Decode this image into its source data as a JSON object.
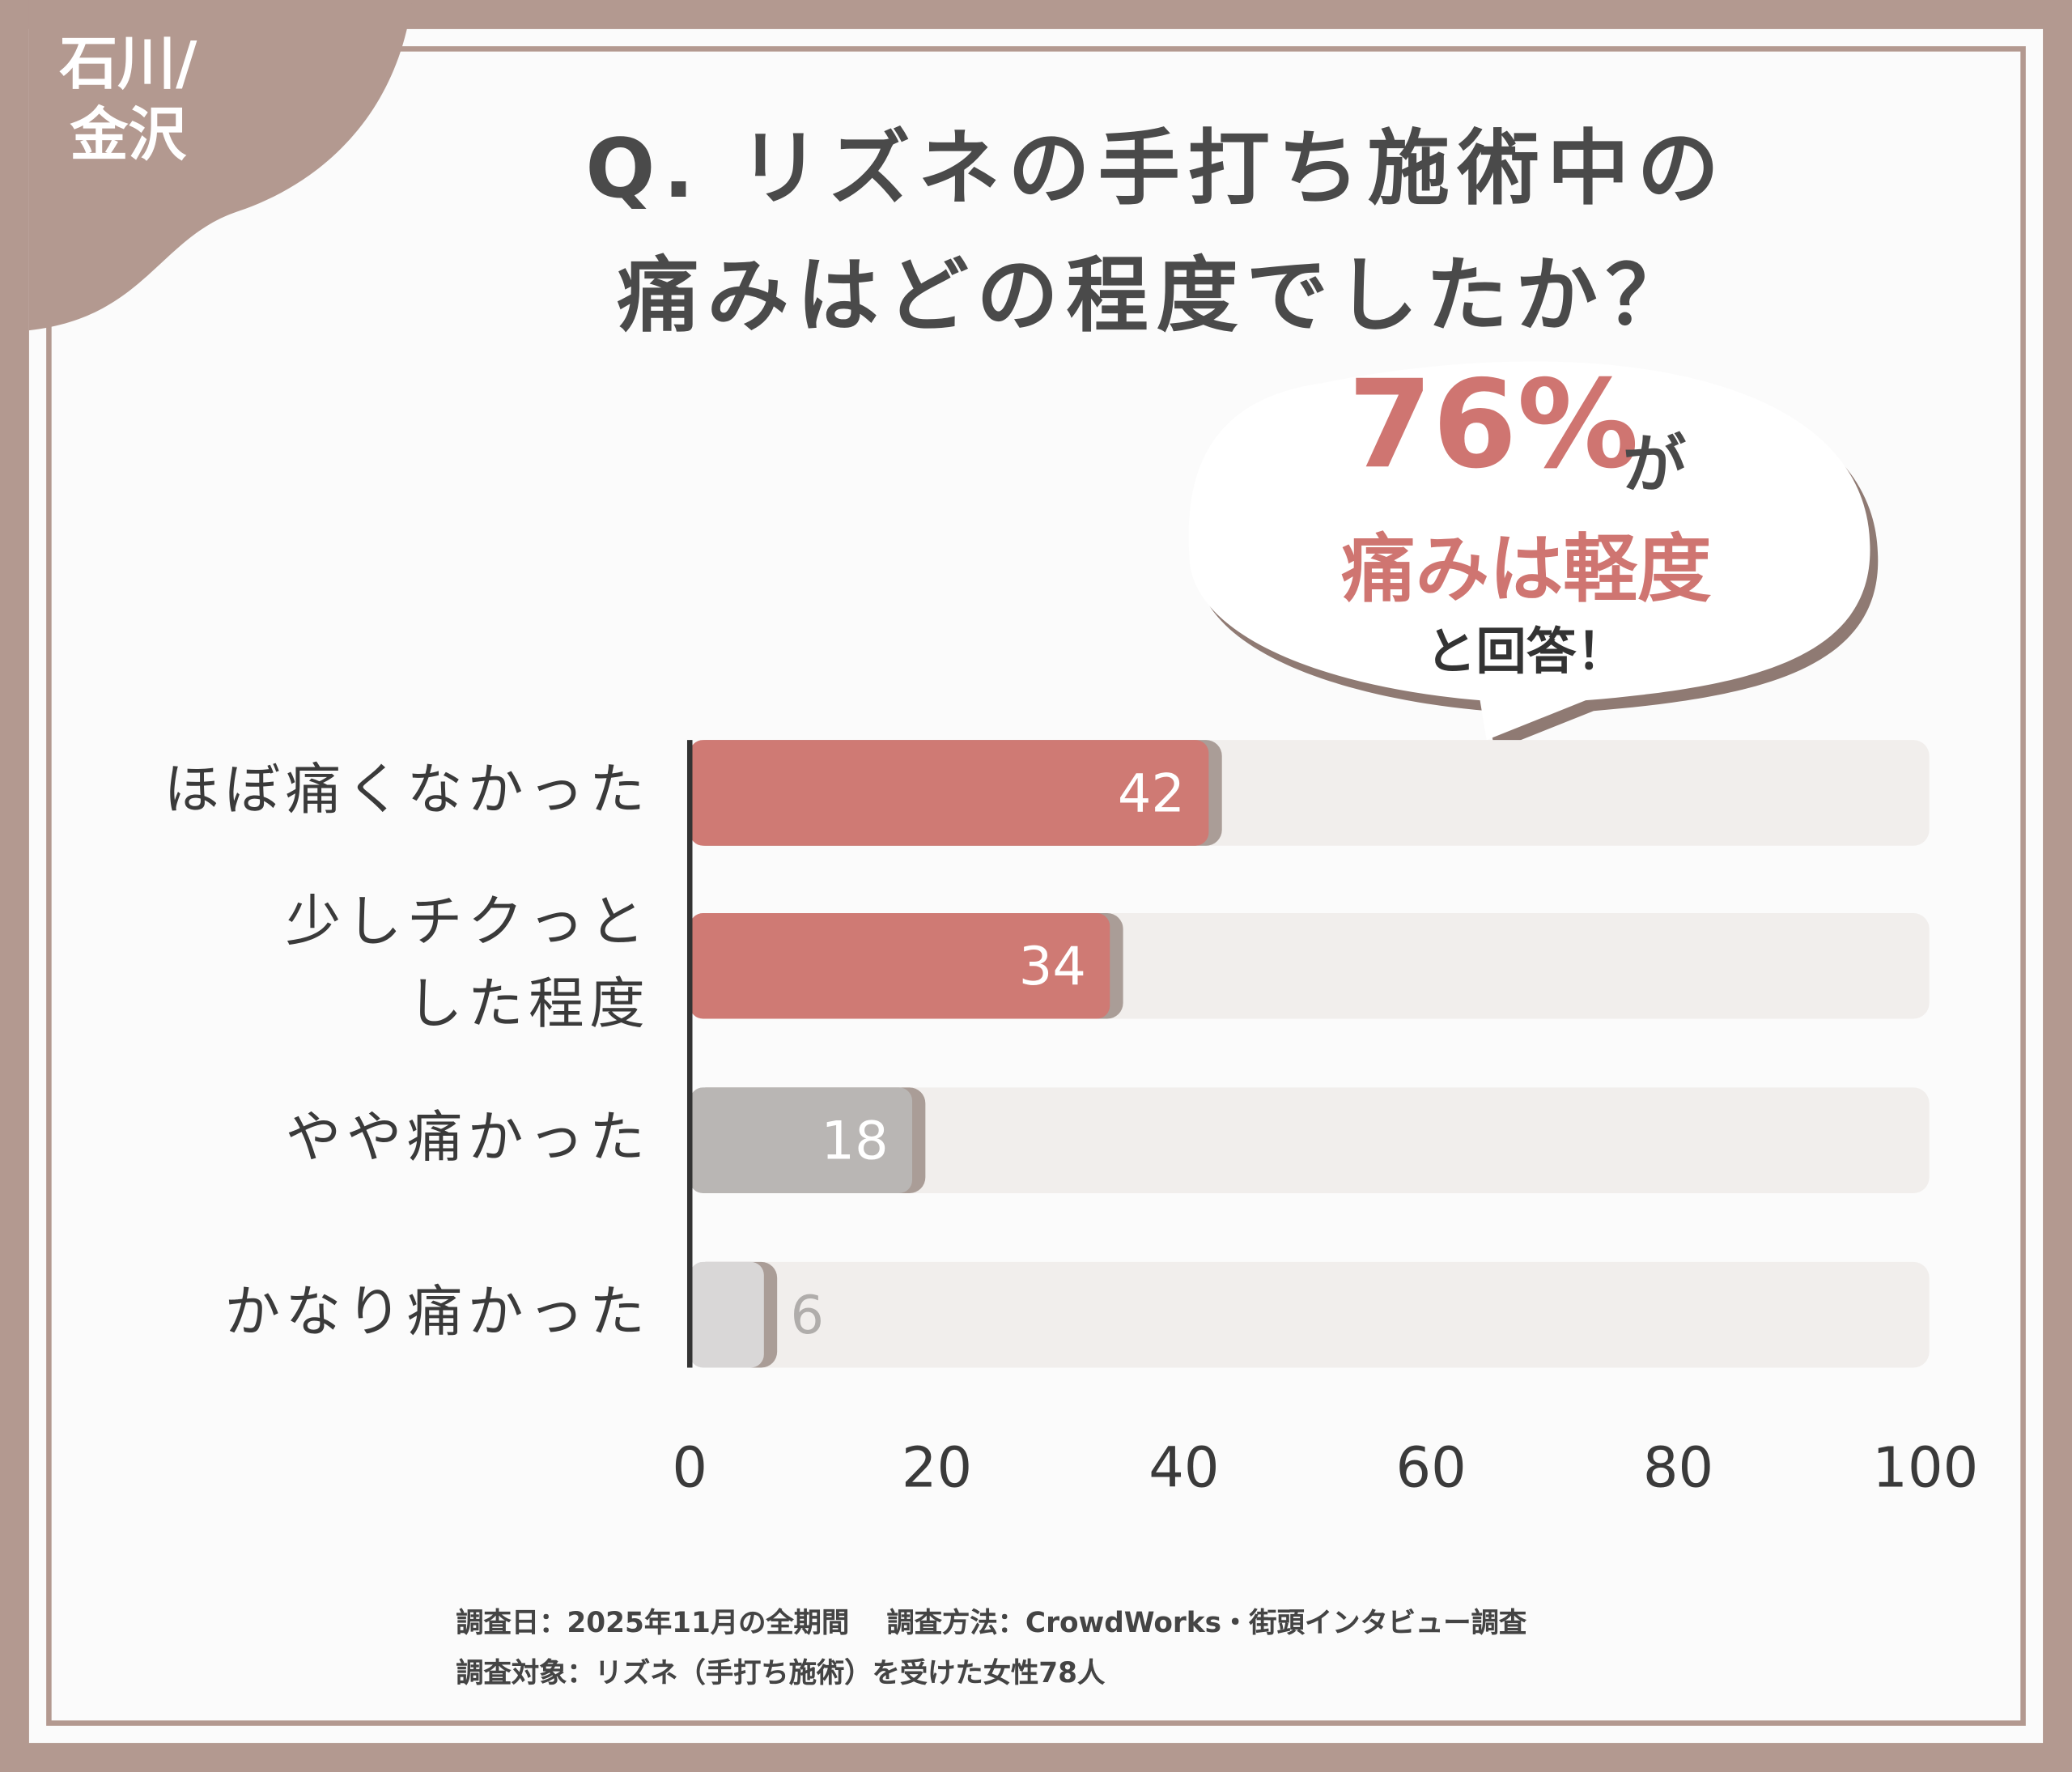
{
  "chart_data": {
    "type": "bar",
    "orientation": "horizontal",
    "title": "Q. リズネの手打ち施術中の\n痛みはどの程度でしたか？",
    "region_tag": "石川/\n金沢",
    "callout": {
      "big": "76%",
      "suffix": "が",
      "middle": "痛みは軽度",
      "bottom": "と回答！"
    },
    "categories": [
      "ほぼ痛くなかった",
      "少しチクっと\nした程度",
      "やや痛かった",
      "かなり痛かった"
    ],
    "values": [
      42,
      34,
      18,
      6
    ],
    "colors": [
      "#cf7a74",
      "#cf7a74",
      "#b9b6b4",
      "#d9d7d7"
    ],
    "label_colors": [
      "#ffffff",
      "#ffffff",
      "#ffffff",
      "#b0adab"
    ],
    "xlim": [
      0,
      100
    ],
    "xticks": [
      0,
      20,
      40,
      60,
      80,
      100
    ],
    "footnotes": [
      "調査日：2025年11月の全期間　 調査方法：CrowdWorks・街頭インタビュー調査",
      "調査対象：リズネ（手打ち施術）を受けた女性78人"
    ]
  }
}
